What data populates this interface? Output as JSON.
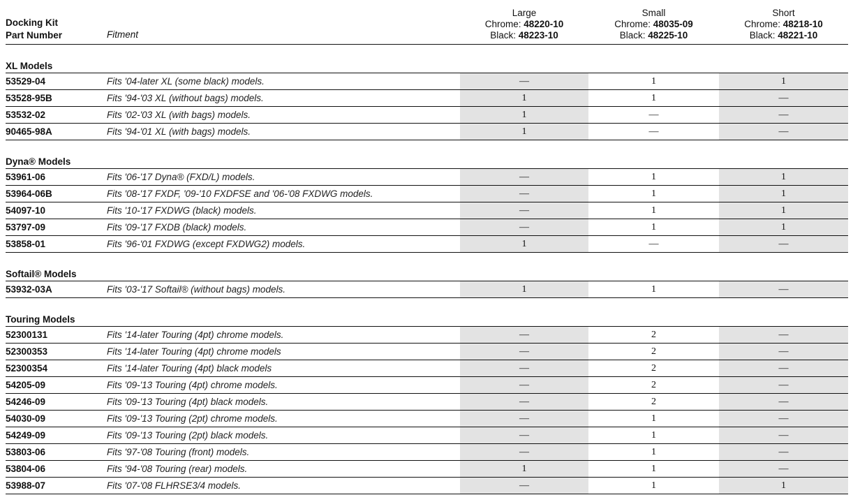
{
  "header": {
    "part_label_line1": "Docking Kit",
    "part_label_line2": "Part Number",
    "fitment_label": "Fitment",
    "columns": [
      {
        "name": "Large",
        "chrome_label": "Chrome:",
        "chrome_part": "48220-10",
        "black_label": "Black:",
        "black_part": "48223-10"
      },
      {
        "name": "Small",
        "chrome_label": "Chrome:",
        "chrome_part": "48035-09",
        "black_label": "Black:",
        "black_part": "48225-10"
      },
      {
        "name": "Short",
        "chrome_label": "Chrome:",
        "chrome_part": "48218-10",
        "black_label": "Black:",
        "black_part": "48221-10"
      }
    ]
  },
  "colors": {
    "shaded_column": "#e3e3e3",
    "rule": "#111111"
  },
  "sections": [
    {
      "title": "XL Models",
      "rows": [
        {
          "part": "53529-04",
          "fitment": "Fits '04-later XL (some black) models.",
          "values": [
            "—",
            "1",
            "1"
          ]
        },
        {
          "part": "53528-95B",
          "fitment": "Fits '94-'03 XL (without bags) models.",
          "values": [
            "1",
            "1",
            "—"
          ]
        },
        {
          "part": "53532-02",
          "fitment": "Fits '02-'03 XL (with bags) models.",
          "values": [
            "1",
            "—",
            "—"
          ]
        },
        {
          "part": "90465-98A",
          "fitment": "Fits '94-'01 XL (with bags) models.",
          "values": [
            "1",
            "—",
            "—"
          ]
        }
      ]
    },
    {
      "title": "Dyna® Models",
      "rows": [
        {
          "part": "53961-06",
          "fitment": "Fits '06-'17 Dyna® (FXD/L) models.",
          "values": [
            "—",
            "1",
            "1"
          ]
        },
        {
          "part": "53964-06B",
          "fitment": "Fits '08-'17 FXDF, '09-'10 FXDFSE and '06-'08 FXDWG models.",
          "values": [
            "—",
            "1",
            "1"
          ]
        },
        {
          "part": "54097-10",
          "fitment": "Fits '10-'17 FXDWG (black) models.",
          "values": [
            "—",
            "1",
            "1"
          ]
        },
        {
          "part": "53797-09",
          "fitment": "Fits '09-'17 FXDB (black) models.",
          "values": [
            "—",
            "1",
            "1"
          ]
        },
        {
          "part": "53858-01",
          "fitment": "Fits '96-'01 FXDWG (except FXDWG2) models.",
          "values": [
            "1",
            "—",
            "—"
          ]
        }
      ]
    },
    {
      "title": "Softail® Models",
      "rows": [
        {
          "part": "53932-03A",
          "fitment": "Fits '03-'17 Softail® (without bags) models.",
          "values": [
            "1",
            "1",
            "—"
          ]
        }
      ]
    },
    {
      "title": "Touring Models",
      "rows": [
        {
          "part": "52300131",
          "fitment": "Fits '14-later Touring (4pt) chrome models.",
          "values": [
            "—",
            "2",
            "—"
          ]
        },
        {
          "part": "52300353",
          "fitment": "Fits '14-later Touring (4pt) chrome models",
          "values": [
            "—",
            "2",
            "—"
          ]
        },
        {
          "part": "52300354",
          "fitment": "Fits '14-later Touring (4pt) black models",
          "values": [
            "—",
            "2",
            "—"
          ]
        },
        {
          "part": "54205-09",
          "fitment": "Fits '09-'13 Touring (4pt) chrome models.",
          "values": [
            "—",
            "2",
            "—"
          ]
        },
        {
          "part": "54246-09",
          "fitment": "Fits '09-'13 Touring (4pt) black models.",
          "values": [
            "—",
            "2",
            "—"
          ]
        },
        {
          "part": "54030-09",
          "fitment": "Fits '09-'13 Touring (2pt) chrome models.",
          "values": [
            "—",
            "1",
            "—"
          ]
        },
        {
          "part": "54249-09",
          "fitment": "Fits '09-'13 Touring (2pt) black models.",
          "values": [
            "—",
            "1",
            "—"
          ]
        },
        {
          "part": "53803-06",
          "fitment": "Fits '97-'08 Touring (front) models.",
          "values": [
            "—",
            "1",
            "—"
          ]
        },
        {
          "part": "53804-06",
          "fitment": "Fits '94-'08 Touring (rear) models.",
          "values": [
            "1",
            "1",
            "—"
          ]
        },
        {
          "part": "53988-07",
          "fitment": "Fits '07-'08 FLHRSE3/4 models.",
          "values": [
            "—",
            "1",
            "1"
          ]
        }
      ]
    }
  ]
}
